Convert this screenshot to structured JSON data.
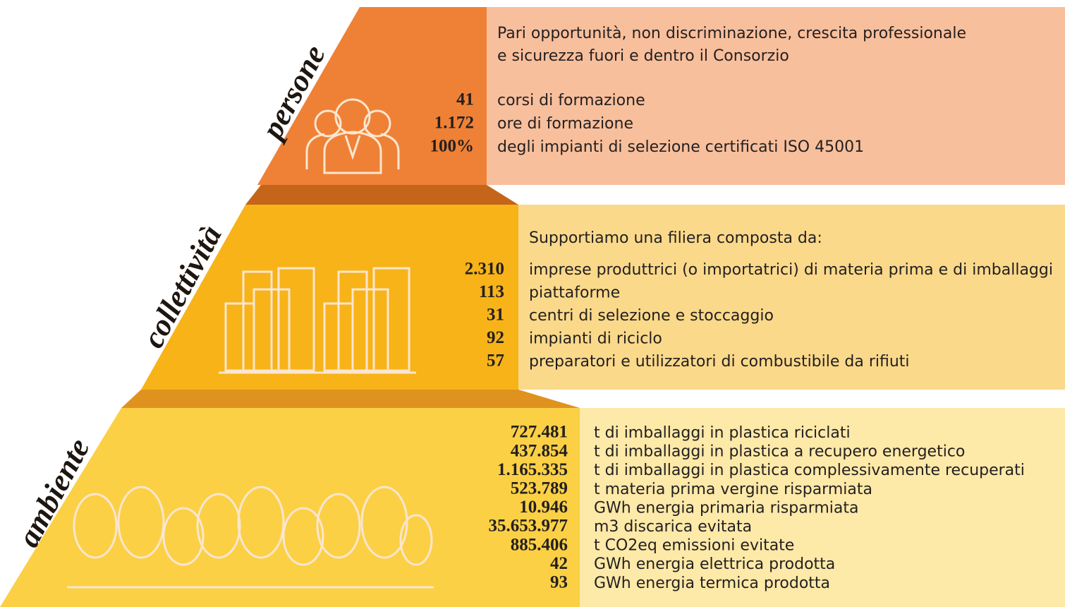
{
  "sections": [
    {
      "label": "persone",
      "intro": [
        "Pari opportunità, non discriminazione, crescita professionale",
        "e sicurezza fuori e dentro il Consorzio"
      ],
      "items": [
        {
          "value": "41",
          "text": "corsi di formazione"
        },
        {
          "value": "1.172",
          "text": "ore di formazione"
        },
        {
          "value": "100%",
          "text": "degli impianti di selezione certificati ISO 45001"
        }
      ]
    },
    {
      "label": "collettività",
      "intro": [
        "Supportiamo una filiera composta da:"
      ],
      "items": [
        {
          "value": "2.310",
          "text": "imprese produttrici (o importatrici) di materia prima e di imballaggi"
        },
        {
          "value": "113",
          "text": "piattaforme"
        },
        {
          "value": "31",
          "text": "centri di selezione e stoccaggio"
        },
        {
          "value": "92",
          "text": "impianti di riciclo"
        },
        {
          "value": "57",
          "text": "preparatori e utilizzatori di combustibile da rifiuti"
        }
      ]
    },
    {
      "label": "ambiente",
      "intro": [],
      "items": [
        {
          "value": "727.481",
          "text": "t di imballaggi in plastica riciclati"
        },
        {
          "value": "437.854",
          "text": "t di imballaggi in plastica a recupero energetico"
        },
        {
          "value": "1.165.335",
          "text": "t di imballaggi in plastica complessivamente recuperati"
        },
        {
          "value": "523.789",
          "text": "t materia prima vergine risparmiata"
        },
        {
          "value": "10.946",
          "text": "GWh energia primaria risparmiata"
        },
        {
          "value": "35.653.977",
          "text": "m3 discarica evitata"
        },
        {
          "value": "885.406",
          "text": "t CO2eq emissioni evitate"
        },
        {
          "value": "42",
          "text": "GWh energia elettrica prodotta"
        },
        {
          "value": "93",
          "text": "GWh energia termica prodotta"
        }
      ]
    }
  ]
}
